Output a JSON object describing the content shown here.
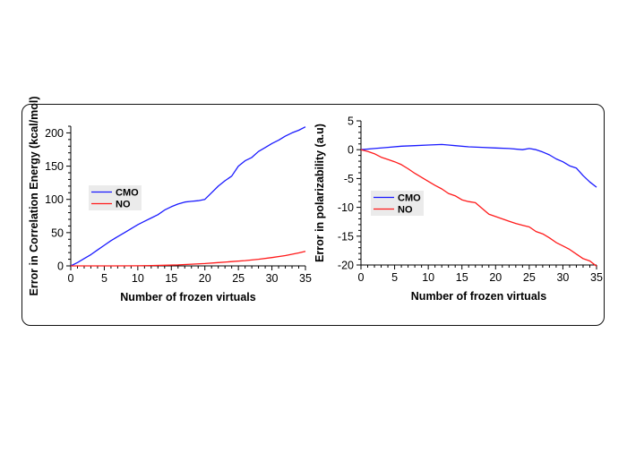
{
  "colors": {
    "cmo": "#1a1aff",
    "no": "#ff1a1a",
    "axis": "#000000",
    "legend_bg": "#ebebeb"
  },
  "chart_data": [
    {
      "type": "line",
      "xlabel": "Number of frozen virtuals",
      "ylabel": "Error in Correlation Energy (kcal/mol)",
      "xlim": [
        0,
        35
      ],
      "ylim": [
        0,
        210
      ],
      "xticks": [
        0,
        5,
        10,
        15,
        20,
        25,
        30,
        35
      ],
      "yticks": [
        0,
        50,
        100,
        150,
        200
      ],
      "legend_position": "middle-left",
      "series": [
        {
          "name": "CMO",
          "color": "#1a1aff",
          "x": [
            0,
            1,
            2,
            3,
            4,
            5,
            6,
            7,
            8,
            9,
            10,
            11,
            12,
            13,
            14,
            15,
            16,
            17,
            18,
            19,
            20,
            21,
            22,
            23,
            24,
            25,
            26,
            27,
            28,
            29,
            30,
            31,
            32,
            33,
            34,
            35
          ],
          "values": [
            0,
            5,
            11,
            17,
            24,
            31,
            38,
            44,
            50,
            56,
            62,
            67,
            72,
            77,
            84,
            89,
            93,
            96,
            97,
            98,
            100,
            110,
            120,
            128,
            135,
            150,
            158,
            163,
            172,
            178,
            184,
            189,
            195,
            200,
            204,
            209
          ]
        },
        {
          "name": "NO",
          "color": "#ff1a1a",
          "x": [
            0,
            5,
            10,
            12,
            14,
            16,
            18,
            20,
            22,
            24,
            26,
            28,
            30,
            32,
            34,
            35
          ],
          "values": [
            0,
            0,
            0.2,
            0.5,
            1,
            1.5,
            2.5,
            3.5,
            5,
            6.5,
            8,
            10,
            12.5,
            15.5,
            19.5,
            22
          ]
        }
      ]
    },
    {
      "type": "line",
      "xlabel": "Number of frozen virtuals",
      "ylabel": "Error in polarizability (a.u)",
      "xlim": [
        0,
        35
      ],
      "ylim": [
        -20,
        5
      ],
      "xticks": [
        0,
        5,
        10,
        15,
        20,
        25,
        30,
        35
      ],
      "yticks": [
        5,
        0,
        -5,
        -10,
        -15,
        -20
      ],
      "legend_position": "middle-left",
      "series": [
        {
          "name": "CMO",
          "color": "#1a1aff",
          "x": [
            0,
            2,
            4,
            6,
            8,
            10,
            12,
            13,
            14,
            16,
            18,
            20,
            22,
            24,
            25,
            26,
            27,
            28,
            29,
            30,
            31,
            32,
            33,
            34,
            35
          ],
          "values": [
            0,
            0.2,
            0.4,
            0.6,
            0.7,
            0.8,
            0.9,
            0.8,
            0.7,
            0.5,
            0.4,
            0.3,
            0.2,
            0,
            0.2,
            0,
            -0.4,
            -0.9,
            -1.6,
            -2.1,
            -2.8,
            -3.2,
            -4.5,
            -5.6,
            -6.5
          ]
        },
        {
          "name": "NO",
          "color": "#ff1a1a",
          "x": [
            0,
            1,
            2,
            3,
            4,
            5,
            6,
            7,
            8,
            9,
            10,
            11,
            12,
            13,
            14,
            15,
            16,
            17,
            18,
            19,
            20,
            21,
            22,
            23,
            24,
            25,
            26,
            27,
            28,
            29,
            30,
            31,
            32,
            33,
            34,
            35
          ],
          "values": [
            0,
            -0.3,
            -0.7,
            -1.3,
            -1.7,
            -2.1,
            -2.6,
            -3.3,
            -4.1,
            -4.8,
            -5.5,
            -6.2,
            -6.8,
            -7.6,
            -8.0,
            -8.7,
            -9.0,
            -9.2,
            -10.2,
            -11.2,
            -11.6,
            -12.0,
            -12.4,
            -12.8,
            -13.1,
            -13.4,
            -14.2,
            -14.6,
            -15.3,
            -16.1,
            -16.7,
            -17.3,
            -18.1,
            -18.9,
            -19.3,
            -20.2
          ]
        }
      ]
    }
  ]
}
